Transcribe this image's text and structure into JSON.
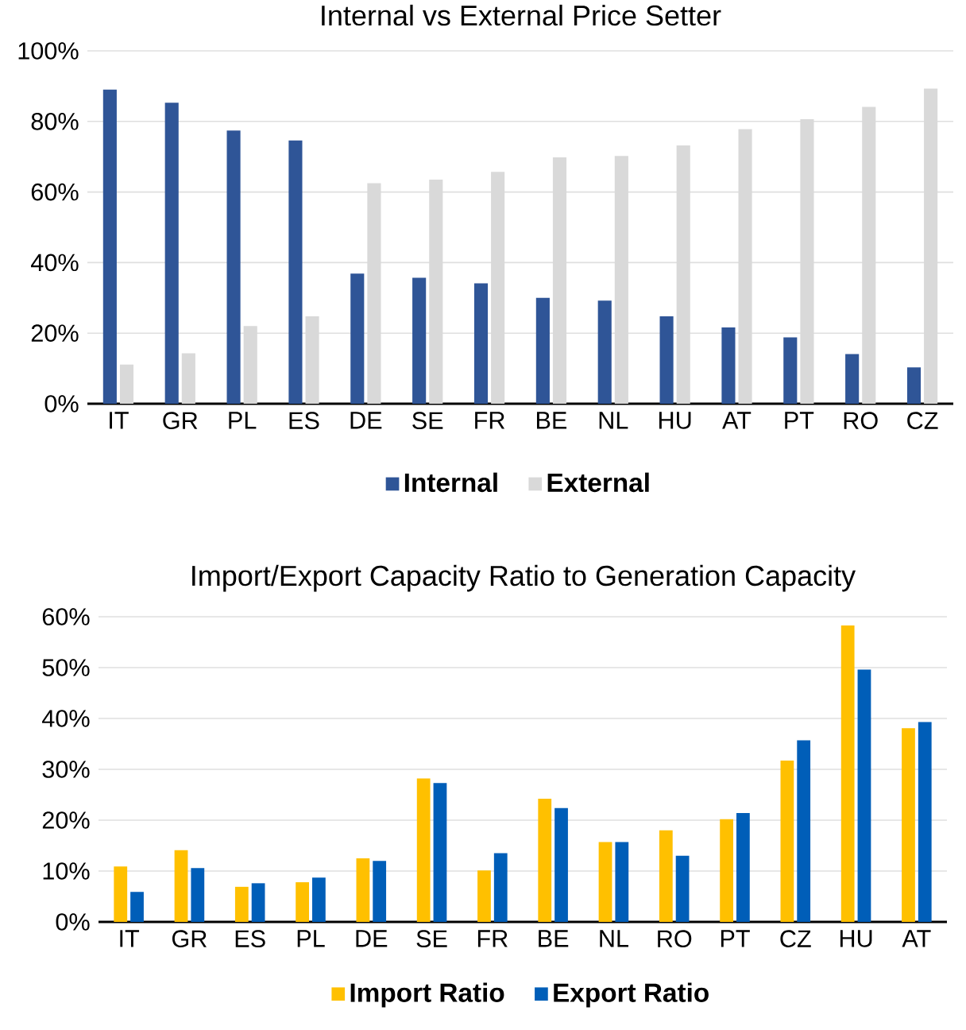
{
  "chart_data": [
    {
      "type": "bar",
      "title": "Internal vs External Price Setter",
      "categories": [
        "IT",
        "GR",
        "PL",
        "ES",
        "DE",
        "SE",
        "FR",
        "BE",
        "NL",
        "HU",
        "AT",
        "PT",
        "RO",
        "CZ"
      ],
      "series": [
        {
          "name": "Internal",
          "color": "#2f5597",
          "values": [
            89,
            85.3,
            77.4,
            74.6,
            36.9,
            35.7,
            34.1,
            30,
            29.2,
            24.8,
            21.6,
            18.8,
            14.1,
            10.3
          ]
        },
        {
          "name": "External",
          "color": "#d9d9d9",
          "values": [
            11.1,
            14.3,
            22,
            24.8,
            62.5,
            63.5,
            65.7,
            69.8,
            70.2,
            73.2,
            77.8,
            80.6,
            84.1,
            89.3
          ]
        }
      ],
      "ylim": [
        0,
        100
      ],
      "yticks": [
        {
          "value": 0,
          "label": "0%"
        },
        {
          "value": 20,
          "label": "20%"
        },
        {
          "value": 40,
          "label": "40%"
        },
        {
          "value": 60,
          "label": "60%"
        },
        {
          "value": 80,
          "label": "80%"
        },
        {
          "value": 100,
          "label": "100%"
        }
      ],
      "grid": "y",
      "legend": "bottom"
    },
    {
      "type": "bar",
      "title": "Import/Export Capacity Ratio to Generation Capacity",
      "categories": [
        "IT",
        "GR",
        "ES",
        "PL",
        "DE",
        "SE",
        "FR",
        "BE",
        "NL",
        "RO",
        "PT",
        "CZ",
        "HU",
        "AT"
      ],
      "series": [
        {
          "name": "Import Ratio",
          "color": "#ffc000",
          "values": [
            10.9,
            14.1,
            6.9,
            7.8,
            12.5,
            28.2,
            10.1,
            24.2,
            15.7,
            18,
            20.2,
            31.7,
            58.3,
            38.1
          ]
        },
        {
          "name": "Export Ratio",
          "color": "#005eb8",
          "values": [
            5.9,
            10.6,
            7.6,
            8.7,
            12,
            27.3,
            13.5,
            22.4,
            15.7,
            13,
            21.4,
            35.7,
            49.6,
            39.3
          ]
        }
      ],
      "ylim": [
        0,
        60
      ],
      "yticks": [
        {
          "value": 0,
          "label": "0%"
        },
        {
          "value": 10,
          "label": "10%"
        },
        {
          "value": 20,
          "label": "20%"
        },
        {
          "value": 30,
          "label": "30%"
        },
        {
          "value": 40,
          "label": "40%"
        },
        {
          "value": 50,
          "label": "50%"
        },
        {
          "value": 60,
          "label": "60%"
        }
      ],
      "grid": "y",
      "legend": "bottom"
    }
  ]
}
